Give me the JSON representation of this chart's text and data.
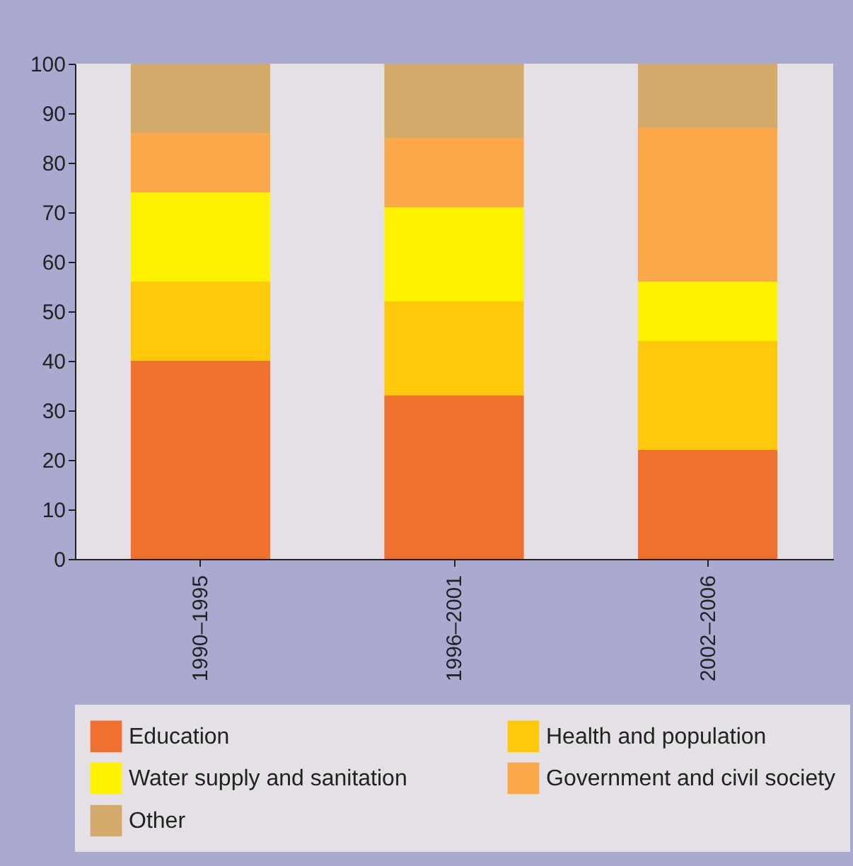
{
  "chart_data": {
    "type": "bar",
    "stacked": true,
    "categories": [
      "1990–1995",
      "1996–2001",
      "2002–2006"
    ],
    "series": [
      {
        "name": "Education",
        "color": "#f07030",
        "values": [
          40,
          33,
          22
        ]
      },
      {
        "name": "Health and population",
        "color": "#ffc80a",
        "values": [
          16,
          19,
          22
        ]
      },
      {
        "name": "Water supply and sanitation",
        "color": "#fff200",
        "values": [
          18,
          19,
          12
        ]
      },
      {
        "name": "Government and civil society",
        "color": "#fba84a",
        "values": [
          12,
          14,
          31
        ]
      },
      {
        "name": "Other",
        "color": "#d4aa6a",
        "values": [
          14,
          15,
          13
        ]
      }
    ],
    "ylim": [
      0,
      100
    ],
    "yticks": [
      0,
      10,
      20,
      30,
      40,
      50,
      60,
      70,
      80,
      90,
      100
    ],
    "grid": false,
    "legend": "bottom"
  }
}
